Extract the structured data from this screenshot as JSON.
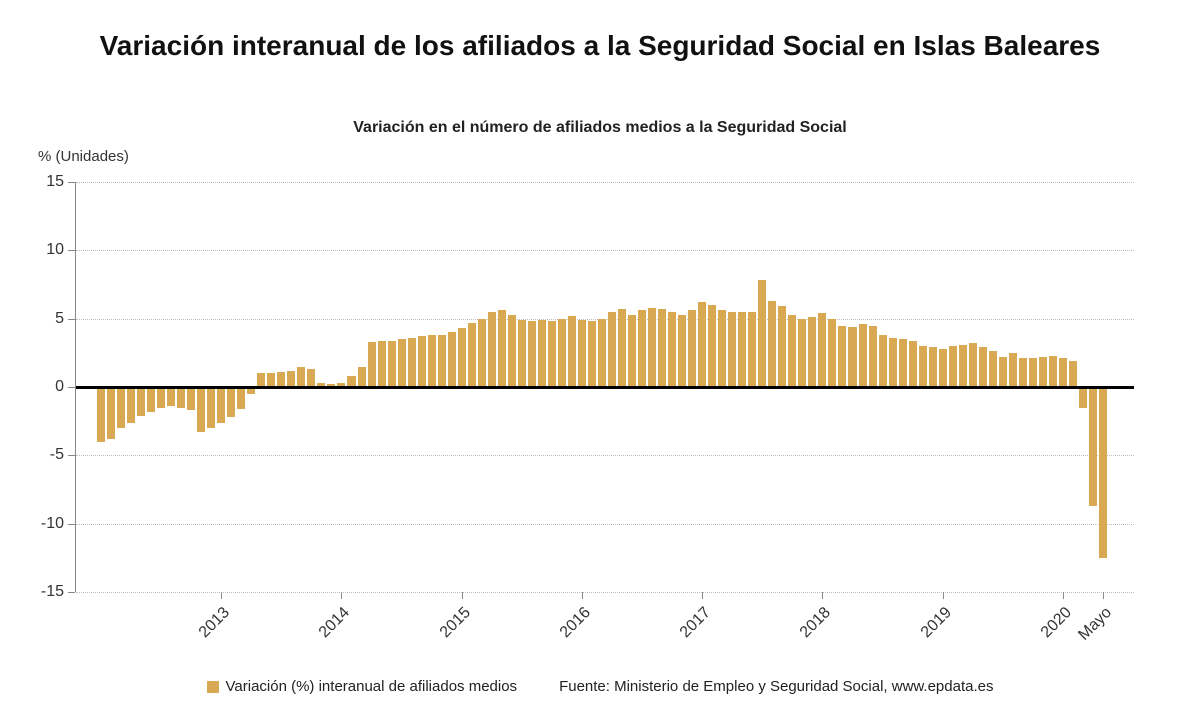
{
  "header": {
    "title": "Variación interanual de los afiliados a la Seguridad Social en Islas Baleares",
    "subtitle": "Variación en el número de afiliados medios a la Seguridad Social"
  },
  "y_axis": {
    "unit_label": "% (Unidades)"
  },
  "legend": {
    "label": "Variación (%) interanual de afiliados medios",
    "swatch_color": "#d9a852"
  },
  "source": "Fuente: Ministerio de Empleo y Seguridad Social, www.epdata.es",
  "chart_data": {
    "type": "bar",
    "title": "Variación interanual de los afiliados a la Seguridad Social en Islas Baleares",
    "subtitle": "Variación en el número de afiliados medios a la Seguridad Social",
    "ylabel": "% (Unidades)",
    "ylim": [
      -15,
      15
    ],
    "yticks": [
      15,
      10,
      5,
      0,
      -5,
      -10,
      -15
    ],
    "grid": "horizontal-dotted",
    "legend_position": "bottom",
    "bar_color": "#d9a852",
    "x_period": {
      "start": "2012-01",
      "end": "2020-05",
      "frequency": "monthly"
    },
    "x_tick_labels": [
      {
        "label": "2013",
        "month_index": 12
      },
      {
        "label": "2014",
        "month_index": 24
      },
      {
        "label": "2015",
        "month_index": 36
      },
      {
        "label": "2016",
        "month_index": 48
      },
      {
        "label": "2017",
        "month_index": 60
      },
      {
        "label": "2018",
        "month_index": 72
      },
      {
        "label": "2019",
        "month_index": 84
      },
      {
        "label": "2020",
        "month_index": 96
      },
      {
        "label": "Mayo",
        "month_index": 100
      }
    ],
    "series": [
      {
        "name": "Variación (%) interanual de afiliados medios",
        "values": [
          -4.0,
          -3.8,
          -3.0,
          -2.6,
          -2.1,
          -1.8,
          -1.5,
          -1.4,
          -1.5,
          -1.7,
          -3.3,
          -3.0,
          -2.6,
          -2.2,
          -1.6,
          -0.5,
          1.0,
          1.0,
          1.1,
          1.2,
          1.5,
          1.3,
          0.3,
          0.2,
          0.3,
          0.8,
          1.5,
          3.3,
          3.4,
          3.4,
          3.5,
          3.6,
          3.7,
          3.8,
          3.8,
          4.0,
          4.3,
          4.7,
          5.0,
          5.5,
          5.6,
          5.3,
          4.9,
          4.8,
          4.9,
          4.8,
          5.0,
          5.2,
          4.9,
          4.8,
          5.0,
          5.5,
          5.7,
          5.3,
          5.6,
          5.8,
          5.7,
          5.5,
          5.3,
          5.6,
          6.2,
          6.0,
          5.6,
          5.5,
          5.5,
          5.5,
          7.8,
          6.3,
          5.9,
          5.3,
          5.0,
          5.1,
          5.4,
          5.0,
          4.5,
          4.4,
          4.6,
          4.5,
          3.8,
          3.6,
          3.5,
          3.4,
          3.0,
          2.9,
          2.8,
          3.0,
          3.1,
          3.2,
          2.9,
          2.6,
          2.2,
          2.5,
          2.1,
          2.1,
          2.2,
          2.3,
          2.1,
          1.9,
          -1.5,
          -8.7,
          -12.5
        ]
      }
    ]
  }
}
